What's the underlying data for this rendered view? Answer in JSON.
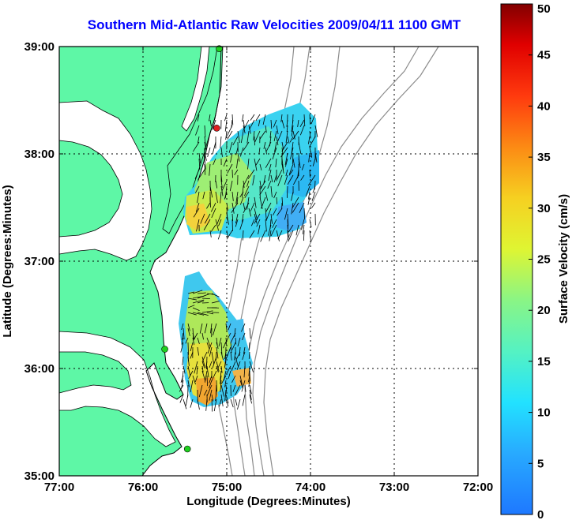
{
  "title": "Southern Mid-Atlantic Raw Velocities 2009/04/11 1100 GMT",
  "map": {
    "xlabel": "Longitude (Degrees:Minutes)",
    "ylabel": "Latitude (Degrees:Minutes)",
    "x_ticks": [
      {
        "value": -77,
        "label": "77:00"
      },
      {
        "value": -76,
        "label": "76:00"
      },
      {
        "value": -75,
        "label": "75:00"
      },
      {
        "value": -74,
        "label": "74:00"
      },
      {
        "value": -73,
        "label": "73:00"
      },
      {
        "value": -72,
        "label": "72:00"
      }
    ],
    "y_ticks": [
      {
        "value": 35,
        "label": "35:00"
      },
      {
        "value": 36,
        "label": "36:00"
      },
      {
        "value": 37,
        "label": "37:00"
      },
      {
        "value": 38,
        "label": "38:00"
      },
      {
        "value": 39,
        "label": "39:00"
      }
    ],
    "xlim": [
      -77,
      -72
    ],
    "ylim": [
      35,
      39
    ],
    "grid": "dotted",
    "colors": {
      "land": "#5ef7a6",
      "coast": "#000000",
      "bathymetry": "#8c8c8c",
      "frame": "#000000",
      "title": "#0000ff"
    },
    "stations": [
      {
        "lon": -75.09,
        "lat": 38.98,
        "color": "#1fd01f"
      },
      {
        "lon": -75.12,
        "lat": 38.24,
        "color": "#e01f1f"
      },
      {
        "lon": -75.74,
        "lat": 36.18,
        "color": "#1fd01f"
      },
      {
        "lon": -75.47,
        "lat": 35.25,
        "color": "#1fd01f"
      }
    ]
  },
  "colorbar": {
    "label": "Surface Velocity (cm/s)",
    "min": 0,
    "max": 50,
    "ticks": [
      {
        "value": 0,
        "label": "0"
      },
      {
        "value": 5,
        "label": "5"
      },
      {
        "value": 10,
        "label": "10"
      },
      {
        "value": 15,
        "label": "15"
      },
      {
        "value": 20,
        "label": "20"
      },
      {
        "value": 25,
        "label": "25"
      },
      {
        "value": 30,
        "label": "30"
      },
      {
        "value": 35,
        "label": "35"
      },
      {
        "value": 40,
        "label": "40"
      },
      {
        "value": 45,
        "label": "45"
      },
      {
        "value": 50,
        "label": "50"
      }
    ]
  }
}
